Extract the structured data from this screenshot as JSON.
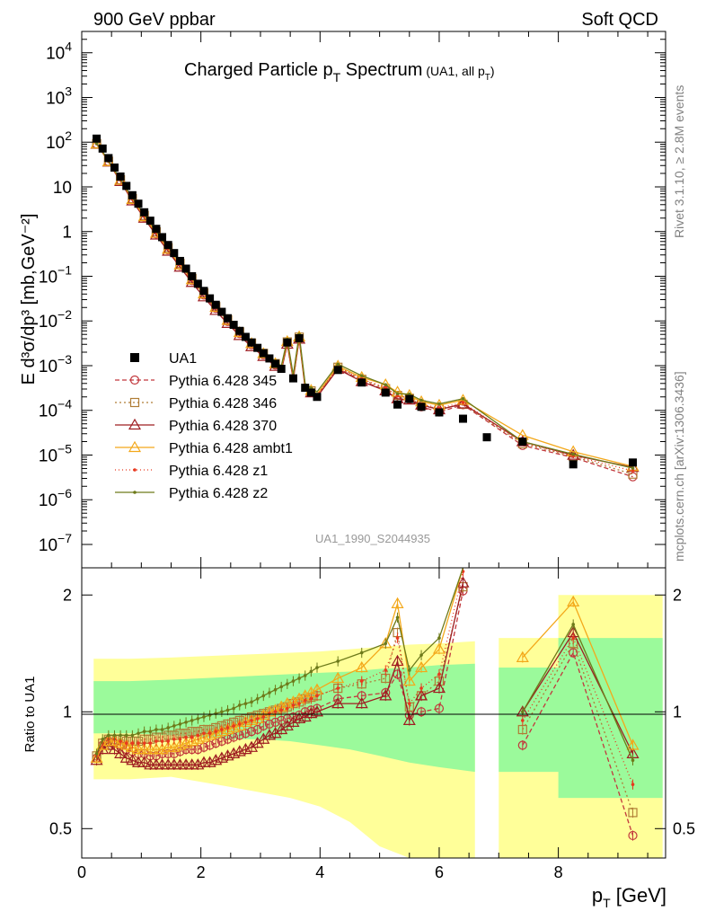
{
  "header": {
    "left": "900 GeV ppbar",
    "right": "Soft QCD"
  },
  "side_labels": {
    "top": "Rivet 3.1.10, ≥ 2.8M events",
    "bottom": "mcplots.cern.ch [arXiv:1306.3436]"
  },
  "chart_data": {
    "type": "line",
    "title": {
      "main": "Charged Particle p",
      "sub": "T",
      "rest": " Spectrum",
      "note": "(UA1, all p",
      "note_sub": "T",
      "note_end": ")"
    },
    "analysis_id": "UA1_1990_S2044935",
    "x_axis": {
      "label": "p",
      "label_sub": "T",
      "label_unit": " [GeV]",
      "range": [
        0,
        9.8
      ],
      "ticks": [
        {
          "v": 0,
          "t": "0"
        },
        {
          "v": 2,
          "t": "2"
        },
        {
          "v": 4,
          "t": "4"
        },
        {
          "v": 6,
          "t": "6"
        },
        {
          "v": 8,
          "t": "8"
        }
      ]
    },
    "y_axis": {
      "label": "E d³σ/dp³ [mb,GeV⁻²]",
      "scale": "log",
      "range": [
        3e-08,
        30000.0
      ],
      "ticks": [
        {
          "v": 10000.0,
          "b": "10",
          "e": "4"
        },
        {
          "v": 1000.0,
          "b": "10",
          "e": "3"
        },
        {
          "v": 100.0,
          "b": "10",
          "e": "2"
        },
        {
          "v": 10,
          "b": "10",
          "e": ""
        },
        {
          "v": 1,
          "b": "1",
          "e": ""
        },
        {
          "v": 0.1,
          "b": "10",
          "e": "−1"
        },
        {
          "v": 0.01,
          "b": "10",
          "e": "−2"
        },
        {
          "v": 0.001,
          "b": "10",
          "e": "−3"
        },
        {
          "v": 0.0001,
          "b": "10",
          "e": "−4"
        },
        {
          "v": 1e-05,
          "b": "10",
          "e": "−5"
        },
        {
          "v": 1e-06,
          "b": "10",
          "e": "−6"
        },
        {
          "v": 1e-07,
          "b": "10",
          "e": "−7"
        }
      ]
    },
    "ratio_axis": {
      "label": "Ratio to UA1",
      "scale": "log",
      "range": [
        0.42,
        2.35
      ],
      "ticks": [
        {
          "v": 0.5,
          "t": "0.5"
        },
        {
          "v": 1,
          "t": "1"
        },
        {
          "v": 2,
          "t": "2"
        }
      ]
    },
    "data": {
      "name": "UA1",
      "pt": [
        0.25,
        0.35,
        0.45,
        0.55,
        0.65,
        0.75,
        0.85,
        0.95,
        1.05,
        1.15,
        1.25,
        1.35,
        1.45,
        1.55,
        1.65,
        1.75,
        1.85,
        1.95,
        2.05,
        2.15,
        2.25,
        2.35,
        2.45,
        2.55,
        2.65,
        2.75,
        2.85,
        2.95,
        3.05,
        3.15,
        3.25,
        3.35,
        3.45,
        3.55,
        3.65,
        3.75,
        3.85,
        3.95,
        4.3,
        4.7,
        5.1,
        5.3,
        5.5,
        5.7,
        6.0,
        6.4,
        6.8,
        7.4,
        8.25,
        9.25
      ],
      "value": [
        120,
        72,
        44,
        27,
        17,
        10.5,
        6.5,
        4.2,
        2.7,
        1.75,
        1.15,
        0.75,
        0.5,
        0.33,
        0.22,
        0.148,
        0.1,
        0.068,
        0.047,
        0.032,
        0.023,
        0.016,
        0.0115,
        0.0082,
        0.006,
        0.0044,
        0.0033,
        0.0025,
        0.0019,
        0.00145,
        0.0011,
        0.00085,
        0.0033,
        0.00052,
        0.0041,
        0.00032,
        0.00025,
        0.0002,
        0.0008,
        0.00042,
        0.00025,
        0.000135,
        0.00018,
        0.00012,
        9e-05,
        6.5e-05,
        2.5e-05,
        2e-05,
        6.2e-06,
        6.8e-06
      ]
    },
    "ratio_bands": [
      {
        "x": [
          0.2,
          0.8,
          1.5,
          2,
          2.5,
          3,
          3.5,
          4,
          4.5,
          5,
          5.5,
          6,
          6.6
        ],
        "inner_lo": [
          0.88,
          0.88,
          0.87,
          0.86,
          0.85,
          0.85,
          0.84,
          0.82,
          0.8,
          0.77,
          0.74,
          0.72,
          0.7
        ],
        "inner_hi": [
          1.2,
          1.2,
          1.21,
          1.22,
          1.23,
          1.24,
          1.25,
          1.26,
          1.27,
          1.29,
          1.3,
          1.32,
          1.33
        ],
        "outer_lo": [
          0.67,
          0.67,
          0.68,
          0.66,
          0.64,
          0.62,
          0.6,
          0.57,
          0.52,
          0.45,
          0.3,
          0.3,
          0.3
        ],
        "outer_hi": [
          1.37,
          1.37,
          1.38,
          1.39,
          1.4,
          1.41,
          1.42,
          1.43,
          1.45,
          1.47,
          1.49,
          1.5,
          1.52
        ]
      },
      {
        "x": [
          7.0,
          8.0,
          8.0,
          9.75
        ],
        "inner_lo": [
          0.7,
          0.7,
          0.6,
          0.6
        ],
        "inner_hi": [
          1.3,
          1.3,
          1.55,
          1.55
        ],
        "outer_lo": [
          0.3,
          0.3,
          0.3,
          0.3
        ],
        "outer_hi": [
          1.55,
          1.55,
          2.0,
          2.0
        ]
      }
    ],
    "series": [
      {
        "name": "Pythia 6.428 345",
        "color": "#c2383d",
        "dash": "5,3",
        "marker": "circle",
        "ratio": [
          0.76,
          0.82,
          0.84,
          0.83,
          0.82,
          0.8,
          0.79,
          0.78,
          0.78,
          0.77,
          0.77,
          0.78,
          0.78,
          0.78,
          0.79,
          0.8,
          0.8,
          0.8,
          0.81,
          0.82,
          0.83,
          0.84,
          0.85,
          0.86,
          0.87,
          0.88,
          0.89,
          0.9,
          0.92,
          0.93,
          0.94,
          0.95,
          0.96,
          0.97,
          0.98,
          1.0,
          1.01,
          1.02,
          1.08,
          1.1,
          1.12,
          1.25,
          0.98,
          1.0,
          1.02,
          2.05,
          null,
          0.82,
          1.42,
          0.48
        ]
      },
      {
        "name": "Pythia 6.428 346",
        "color": "#b07d36",
        "dash": "2,3",
        "marker": "square",
        "ratio": [
          0.77,
          0.83,
          0.85,
          0.85,
          0.85,
          0.84,
          0.84,
          0.84,
          0.85,
          0.85,
          0.86,
          0.86,
          0.87,
          0.87,
          0.88,
          0.88,
          0.89,
          0.89,
          0.9,
          0.9,
          0.91,
          0.92,
          0.93,
          0.94,
          0.95,
          0.96,
          0.97,
          0.98,
          0.99,
          1.0,
          1.01,
          1.02,
          1.03,
          1.05,
          1.06,
          1.08,
          1.09,
          1.1,
          1.15,
          1.18,
          1.22,
          1.6,
          1.03,
          1.1,
          1.2,
          2.1,
          null,
          0.9,
          1.5,
          0.55
        ]
      },
      {
        "name": "Pythia 6.428 370",
        "color": "#9e1d22",
        "dash": "",
        "marker": "triangle",
        "ratio": [
          0.75,
          0.8,
          0.82,
          0.8,
          0.78,
          0.76,
          0.75,
          0.74,
          0.74,
          0.73,
          0.73,
          0.73,
          0.73,
          0.73,
          0.73,
          0.73,
          0.73,
          0.73,
          0.74,
          0.74,
          0.75,
          0.76,
          0.77,
          0.78,
          0.79,
          0.8,
          0.81,
          0.83,
          0.85,
          0.87,
          0.88,
          0.9,
          0.92,
          0.94,
          0.96,
          0.97,
          0.99,
          1.0,
          1.05,
          1.05,
          1.1,
          1.35,
          0.95,
          1.1,
          1.15,
          2.15,
          null,
          1.0,
          1.6,
          0.78
        ]
      },
      {
        "name": "Pythia 6.428 ambt1",
        "color": "#f3a81a",
        "dash": "",
        "marker": "triangle",
        "ratio": [
          0.76,
          0.82,
          0.84,
          0.84,
          0.83,
          0.82,
          0.81,
          0.8,
          0.8,
          0.8,
          0.8,
          0.8,
          0.81,
          0.81,
          0.82,
          0.83,
          0.84,
          0.85,
          0.86,
          0.87,
          0.88,
          0.89,
          0.9,
          0.91,
          0.92,
          0.94,
          0.95,
          0.96,
          0.98,
          1.0,
          1.01,
          1.03,
          1.05,
          1.06,
          1.08,
          1.1,
          1.12,
          1.14,
          1.22,
          1.3,
          1.5,
          1.9,
          1.2,
          1.3,
          1.45,
          2.6,
          null,
          1.38,
          1.92,
          0.82
        ]
      },
      {
        "name": "Pythia 6.428 z1",
        "color": "#e8381e",
        "dash": "1,3",
        "marker": "dot",
        "ratio": [
          0.77,
          0.83,
          0.85,
          0.85,
          0.84,
          0.83,
          0.83,
          0.83,
          0.83,
          0.83,
          0.84,
          0.84,
          0.84,
          0.85,
          0.85,
          0.86,
          0.86,
          0.87,
          0.88,
          0.88,
          0.89,
          0.9,
          0.91,
          0.92,
          0.93,
          0.94,
          0.95,
          0.96,
          0.97,
          0.99,
          1.0,
          1.01,
          1.02,
          1.04,
          1.05,
          1.07,
          1.08,
          1.1,
          1.15,
          1.2,
          1.28,
          1.55,
          1.05,
          1.15,
          1.25,
          2.3,
          null,
          0.95,
          1.55,
          0.65
        ]
      },
      {
        "name": "Pythia 6.428 z2",
        "color": "#6d7a1a",
        "dash": "",
        "marker": "dot",
        "ratio": [
          0.78,
          0.85,
          0.87,
          0.87,
          0.87,
          0.87,
          0.87,
          0.88,
          0.89,
          0.89,
          0.9,
          0.9,
          0.91,
          0.92,
          0.93,
          0.94,
          0.95,
          0.96,
          0.97,
          0.98,
          0.99,
          1.0,
          1.01,
          1.02,
          1.04,
          1.05,
          1.06,
          1.08,
          1.1,
          1.12,
          1.14,
          1.16,
          1.18,
          1.2,
          1.22,
          1.24,
          1.27,
          1.3,
          1.35,
          1.42,
          1.5,
          1.75,
          1.28,
          1.4,
          1.55,
          2.8,
          null,
          1.0,
          1.68,
          0.75
        ]
      }
    ]
  }
}
